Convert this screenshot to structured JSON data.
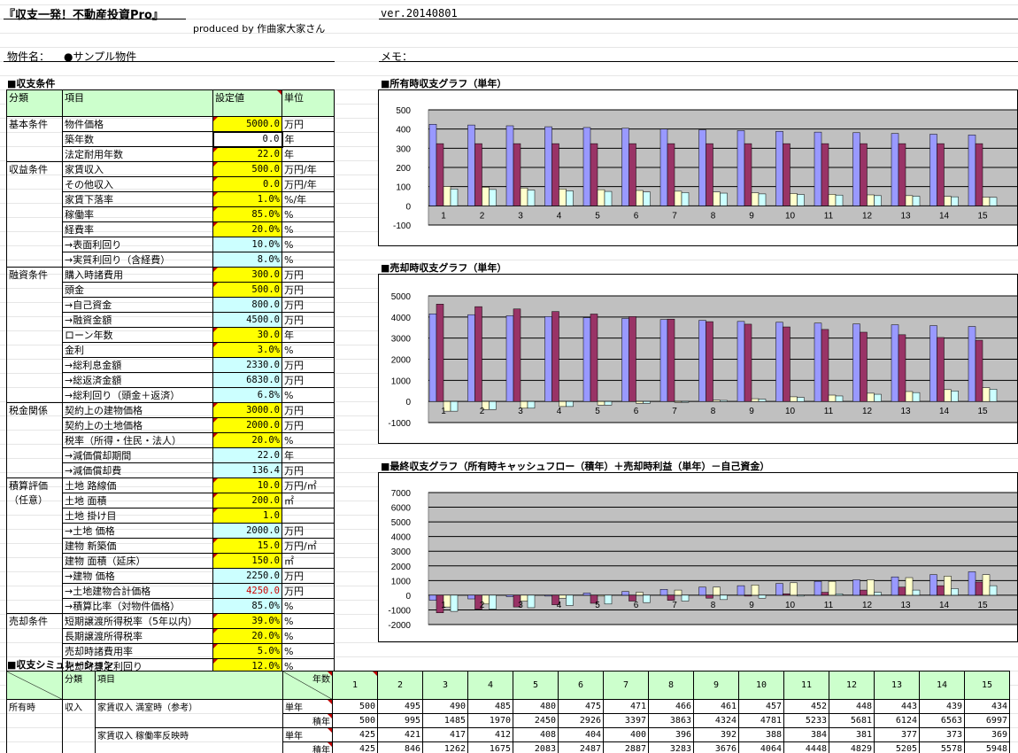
{
  "header": {
    "title": "『収支一発！不動産投資Pro』",
    "version": "ver.20140801",
    "credit": "produced by 作曲家大家さん"
  },
  "property": {
    "name_label": "物件名：",
    "name_value": "●サンプル物件",
    "memo_label": "メモ："
  },
  "conditions": {
    "section_title": "■収支条件",
    "headers": {
      "category": "分類",
      "item": "項目",
      "value": "設定値",
      "unit": "単位"
    },
    "rows": [
      {
        "cat": "基本条件",
        "item": "物件価格",
        "value": "5000.0",
        "unit": "万円",
        "kind": "input"
      },
      {
        "cat": "",
        "item": "築年数",
        "value": "0.0",
        "unit": "年",
        "kind": "input"
      },
      {
        "cat": "",
        "item": "法定耐用年数",
        "value": "22.0",
        "unit": "年",
        "kind": "input"
      },
      {
        "cat": "収益条件",
        "item": "家賃収入",
        "value": "500.0",
        "unit": "万円/年",
        "kind": "input"
      },
      {
        "cat": "",
        "item": "その他収入",
        "value": "0.0",
        "unit": "万円/年",
        "kind": "input"
      },
      {
        "cat": "",
        "item": "家賃下落率",
        "value": "1.0%",
        "unit": "%/年",
        "kind": "input"
      },
      {
        "cat": "",
        "item": "稼働率",
        "value": "85.0%",
        "unit": "%",
        "kind": "input"
      },
      {
        "cat": "",
        "item": "経費率",
        "value": "20.0%",
        "unit": "%",
        "kind": "input"
      },
      {
        "cat": "",
        "item": "→表面利回り",
        "value": "10.0%",
        "unit": "%",
        "kind": "calc"
      },
      {
        "cat": "",
        "item": "→実質利回り（含経費）",
        "value": "8.0%",
        "unit": "%",
        "kind": "calc"
      },
      {
        "cat": "融資条件",
        "item": "購入時諸費用",
        "value": "300.0",
        "unit": "万円",
        "kind": "input"
      },
      {
        "cat": "",
        "item": "頭金",
        "value": "500.0",
        "unit": "万円",
        "kind": "input"
      },
      {
        "cat": "",
        "item": "→自己資金",
        "value": "800.0",
        "unit": "万円",
        "kind": "calc"
      },
      {
        "cat": "",
        "item": "→融資金額",
        "value": "4500.0",
        "unit": "万円",
        "kind": "calc"
      },
      {
        "cat": "",
        "item": "ローン年数",
        "value": "30.0",
        "unit": "年",
        "kind": "input"
      },
      {
        "cat": "",
        "item": "金利",
        "value": "3.0%",
        "unit": "%",
        "kind": "input"
      },
      {
        "cat": "",
        "item": "→総利息金額",
        "value": "2330.0",
        "unit": "万円",
        "kind": "calc"
      },
      {
        "cat": "",
        "item": "→総返済金額",
        "value": "6830.0",
        "unit": "万円",
        "kind": "calc"
      },
      {
        "cat": "",
        "item": "→総利回り（頭金＋返済）",
        "value": "6.8%",
        "unit": "%",
        "kind": "calc"
      },
      {
        "cat": "税金関係",
        "item": "契約上の建物価格",
        "value": "3000.0",
        "unit": "万円",
        "kind": "input"
      },
      {
        "cat": "",
        "item": "契約上の土地価格",
        "value": "2000.0",
        "unit": "万円",
        "kind": "input"
      },
      {
        "cat": "",
        "item": "税率（所得・住民・法人）",
        "value": "20.0%",
        "unit": "%",
        "kind": "input"
      },
      {
        "cat": "",
        "item": "→減価償却期間",
        "value": "22.0",
        "unit": "年",
        "kind": "calc"
      },
      {
        "cat": "",
        "item": "→減価償却費",
        "value": "136.4",
        "unit": "万円",
        "kind": "calc"
      },
      {
        "cat": "積算評価\n（任意）",
        "item": "土地 路線価",
        "value": "10.0",
        "unit": "万円/㎡",
        "kind": "input"
      },
      {
        "cat": "",
        "item": "土地 面積",
        "value": "200.0",
        "unit": "㎡",
        "kind": "input"
      },
      {
        "cat": "",
        "item": "土地 掛け目",
        "value": "1.0",
        "unit": "",
        "kind": "input"
      },
      {
        "cat": "",
        "item": "→土地 価格",
        "value": "2000.0",
        "unit": "万円",
        "kind": "calc"
      },
      {
        "cat": "",
        "item": "建物 新築価",
        "value": "15.0",
        "unit": "万円/㎡",
        "kind": "input"
      },
      {
        "cat": "",
        "item": "建物 面積（延床）",
        "value": "150.0",
        "unit": "㎡",
        "kind": "input"
      },
      {
        "cat": "",
        "item": "→建物 価格",
        "value": "2250.0",
        "unit": "万円",
        "kind": "calc"
      },
      {
        "cat": "",
        "item": "→土地建物合計価格",
        "value": "4250.0",
        "unit": "万円",
        "kind": "calc-red"
      },
      {
        "cat": "",
        "item": "→積算比率（対物件価格）",
        "value": "85.0%",
        "unit": "%",
        "kind": "calc"
      },
      {
        "cat": "売却条件",
        "item": "短期譲渡所得税率（5年以内）",
        "value": "39.0%",
        "unit": "%",
        "kind": "input"
      },
      {
        "cat": "",
        "item": "長期譲渡所得税率",
        "value": "20.0%",
        "unit": "%",
        "kind": "input"
      },
      {
        "cat": "",
        "item": "売却時諸費用率",
        "value": "5.0%",
        "unit": "%",
        "kind": "input"
      },
      {
        "cat": "",
        "item": "売却時想定利回り",
        "value": "12.0%",
        "unit": "%",
        "kind": "input"
      }
    ]
  },
  "chart_data": [
    {
      "type": "bar",
      "title": "■所有時収支グラフ（単年）",
      "categories": [
        "1",
        "2",
        "3",
        "4",
        "5",
        "6",
        "7",
        "8",
        "9",
        "10",
        "11",
        "12",
        "13",
        "14",
        "15"
      ],
      "ylim": [
        -100,
        500
      ],
      "yticks": [
        -100,
        0,
        100,
        200,
        300,
        400,
        500
      ],
      "grid": true,
      "series": [
        {
          "values": [
            425,
            421,
            417,
            412,
            408,
            404,
            400,
            396,
            392,
            388,
            384,
            381,
            377,
            373,
            369
          ],
          "color": "#9999ff"
        },
        {
          "values": [
            324,
            324,
            324,
            324,
            324,
            324,
            324,
            324,
            324,
            324,
            324,
            324,
            324,
            324,
            324
          ],
          "color": "#993366"
        },
        {
          "values": [
            101,
            97,
            93,
            88,
            84,
            80,
            76,
            72,
            68,
            64,
            60,
            57,
            53,
            49,
            45
          ],
          "color": "#ffffcc"
        },
        {
          "values": [
            88,
            85,
            82,
            78,
            75,
            72,
            69,
            66,
            62,
            59,
            56,
            53,
            50,
            47,
            44
          ],
          "color": "#ccffff"
        }
      ]
    },
    {
      "type": "bar",
      "title": "■売却時収支グラフ（単年）",
      "categories": [
        "1",
        "2",
        "3",
        "4",
        "5",
        "6",
        "7",
        "8",
        "9",
        "10",
        "11",
        "12",
        "13",
        "14",
        "15"
      ],
      "ylim": [
        -1000,
        5000
      ],
      "yticks": [
        -1000,
        0,
        1000,
        2000,
        3000,
        4000,
        5000
      ],
      "grid": true,
      "series": [
        {
          "values": [
            4150,
            4110,
            4060,
            4020,
            3970,
            3930,
            3880,
            3840,
            3790,
            3750,
            3710,
            3670,
            3630,
            3590,
            3550
          ],
          "color": "#9999ff"
        },
        {
          "values": [
            4610,
            4490,
            4380,
            4260,
            4140,
            4020,
            3900,
            3780,
            3660,
            3530,
            3410,
            3280,
            3160,
            3030,
            2900
          ],
          "color": "#993366"
        },
        {
          "values": [
            -460,
            -380,
            -320,
            -240,
            -170,
            -90,
            -20,
            60,
            130,
            220,
            300,
            390,
            470,
            560,
            650
          ],
          "color": "#ffffcc"
        },
        {
          "values": [
            -460,
            -380,
            -320,
            -240,
            -170,
            -90,
            -20,
            50,
            110,
            190,
            260,
            340,
            420,
            500,
            580
          ],
          "color": "#ccffff"
        }
      ]
    },
    {
      "type": "bar",
      "title": "■最終収支グラフ（所有時キャッシュフロー（積年）＋売却時利益（単年）－自己資金）",
      "categories": [
        "1",
        "2",
        "3",
        "4",
        "5",
        "6",
        "7",
        "8",
        "9",
        "10",
        "11",
        "12",
        "13",
        "14",
        "15"
      ],
      "ylim": [
        -2000,
        7000
      ],
      "yticks": [
        -2000,
        -1000,
        0,
        1000,
        2000,
        3000,
        4000,
        5000,
        6000,
        7000
      ],
      "grid": true,
      "series": [
        {
          "values": [
            -350,
            -250,
            -100,
            0,
            150,
            250,
            400,
            550,
            650,
            800,
            950,
            1050,
            1250,
            1400,
            1600
          ],
          "color": "#9999ff"
        },
        {
          "values": [
            -1200,
            -950,
            -800,
            -650,
            -550,
            -400,
            -350,
            -200,
            -50,
            100,
            200,
            350,
            550,
            650,
            900
          ],
          "color": "#993366"
        },
        {
          "values": [
            -800,
            -600,
            -400,
            -200,
            0,
            200,
            350,
            550,
            700,
            850,
            950,
            1050,
            1200,
            1300,
            1400
          ],
          "color": "#ffffcc"
        },
        {
          "values": [
            -1100,
            -950,
            -850,
            -700,
            -600,
            -500,
            -400,
            -300,
            -200,
            -50,
            100,
            200,
            350,
            450,
            650
          ],
          "color": "#ccffff"
        }
      ]
    }
  ],
  "simulation": {
    "section_title": "■収支シミュレーション",
    "headers": {
      "category": "分類",
      "item": "項目",
      "year": "年数"
    },
    "years": [
      "1",
      "2",
      "3",
      "4",
      "5",
      "6",
      "7",
      "8",
      "9",
      "10",
      "11",
      "12",
      "13",
      "14",
      "15"
    ],
    "group": "所有時",
    "subgroup": "収入",
    "rows": [
      {
        "item": "家賃収入 満室時（参考）",
        "kind": "単年",
        "values": [
          "500",
          "495",
          "490",
          "485",
          "480",
          "475",
          "471",
          "466",
          "461",
          "457",
          "452",
          "448",
          "443",
          "439",
          "434"
        ]
      },
      {
        "item": "",
        "kind": "積年",
        "values": [
          "500",
          "995",
          "1485",
          "1970",
          "2450",
          "2926",
          "3397",
          "3863",
          "4324",
          "4781",
          "5233",
          "5681",
          "6124",
          "6563",
          "6997"
        ]
      },
      {
        "item": "家賃収入 稼働率反映時",
        "kind": "単年",
        "values": [
          "425",
          "421",
          "417",
          "412",
          "408",
          "404",
          "400",
          "396",
          "392",
          "388",
          "384",
          "381",
          "377",
          "373",
          "369"
        ]
      },
      {
        "item": "",
        "kind": "積年",
        "values": [
          "425",
          "846",
          "1262",
          "1675",
          "2083",
          "2487",
          "2887",
          "3283",
          "3676",
          "4064",
          "4448",
          "4829",
          "5205",
          "5578",
          "5948"
        ]
      }
    ]
  }
}
